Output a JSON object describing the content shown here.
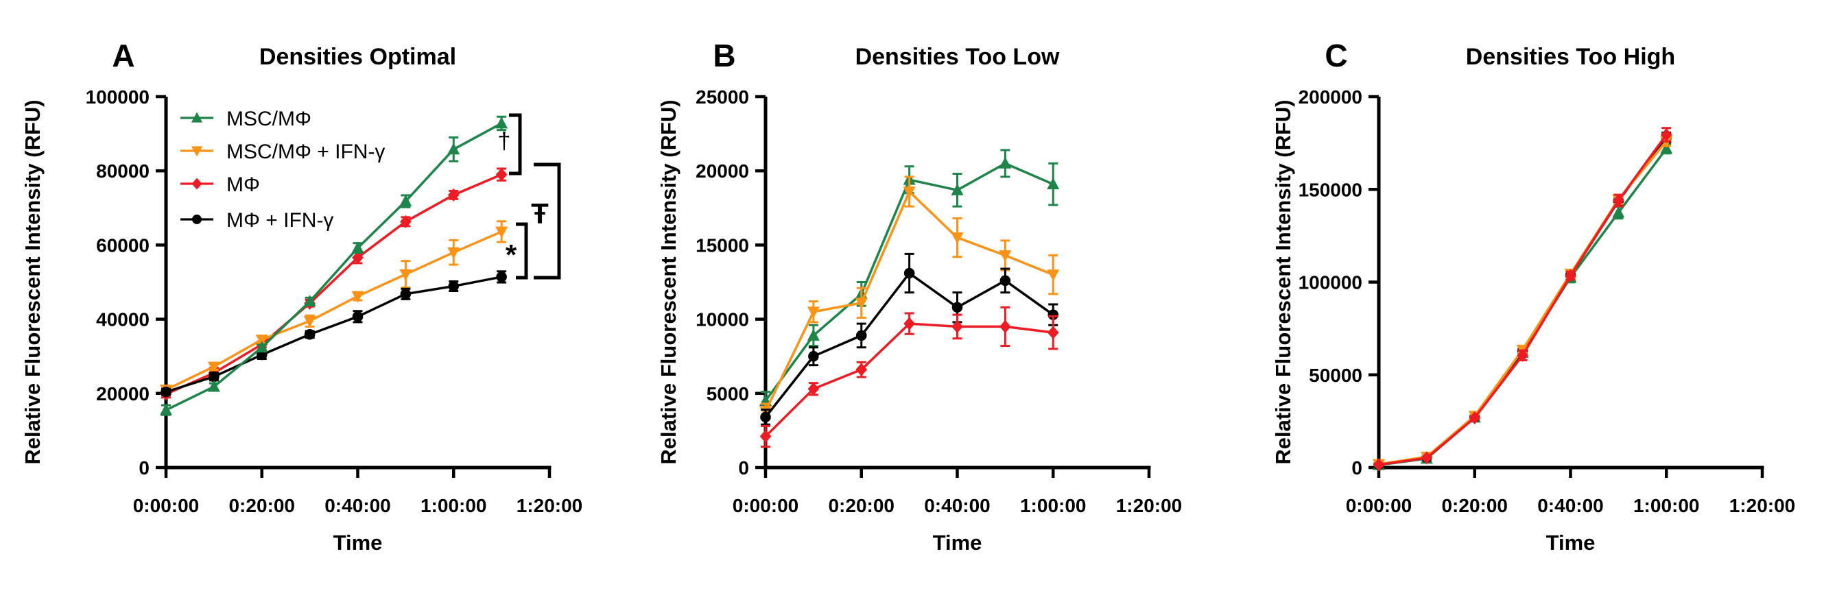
{
  "figure": {
    "background": "#ffffff",
    "x_axis_label": "Time",
    "colors": {
      "green": "#1E8449",
      "orange": "#FB9318",
      "red": "#EC1C24",
      "black": "#000000"
    },
    "legend": [
      {
        "label": "MSC/MΦ",
        "color": "#1E8449",
        "marker": "triangle-up"
      },
      {
        "label": "MSC/MΦ + IFN-γ",
        "color": "#FB9318",
        "marker": "triangle-down"
      },
      {
        "label": "MΦ",
        "color": "#EC1C24",
        "marker": "diamond"
      },
      {
        "label": "MΦ + IFN-γ",
        "color": "#000000",
        "marker": "circle"
      }
    ]
  },
  "chart_data": [
    {
      "type": "line",
      "panel_letter": "A",
      "title": "Densities Optimal",
      "xlabel": "Time",
      "ylabel": "Relative Fluorescent Intensity (RFU)",
      "xlim_minutes": [
        0,
        80
      ],
      "x_tick_minutes": [
        0,
        20,
        40,
        60,
        80
      ],
      "x_tick_labels": [
        "0:00:00",
        "0:20:00",
        "0:40:00",
        "1:00:00",
        "1:20:00"
      ],
      "ylim": [
        0,
        100000
      ],
      "y_ticks": [
        0,
        20000,
        40000,
        60000,
        80000,
        100000
      ],
      "y_tick_labels": [
        "0",
        "20000",
        "40000",
        "60000",
        "80000",
        "100000"
      ],
      "show_legend": true,
      "x_minutes": [
        0,
        10,
        20,
        30,
        40,
        50,
        60,
        70
      ],
      "draw_order": [
        2,
        1,
        3,
        0
      ],
      "series": [
        {
          "name": "MSC/MΦ",
          "color": "#1E8449",
          "marker": "triangle-up",
          "values": [
            15500,
            21800,
            32400,
            44800,
            59200,
            71800,
            85800,
            92800
          ],
          "errors": [
            1300,
            900,
            700,
            1000,
            1300,
            1600,
            3200,
            1800
          ]
        },
        {
          "name": "MSC/MΦ + IFN-γ",
          "color": "#FB9318",
          "marker": "triangle-down",
          "values": [
            21000,
            27200,
            34500,
            39500,
            46200,
            52100,
            58000,
            63600
          ],
          "errors": [
            800,
            900,
            900,
            1500,
            1100,
            3600,
            3300,
            2800
          ]
        },
        {
          "name": "MΦ",
          "color": "#EC1C24",
          "marker": "diamond",
          "values": [
            19800,
            25500,
            33200,
            44300,
            56600,
            66300,
            73500,
            79000
          ],
          "errors": [
            900,
            1400,
            800,
            900,
            1500,
            1200,
            1100,
            1600
          ]
        },
        {
          "name": "MΦ + IFN-γ",
          "color": "#000000",
          "marker": "circle",
          "values": [
            20400,
            24500,
            30400,
            35900,
            40700,
            46800,
            48900,
            51400
          ],
          "errors": [
            800,
            1000,
            1100,
            900,
            1500,
            1400,
            1300,
            1500
          ]
        }
      ],
      "annotations": [
        {
          "symbol": "†",
          "x": 758,
          "top": 168,
          "bottom": 253,
          "arm": 16,
          "lx": 735,
          "ly": 217,
          "fs": 34,
          "bold": false
        },
        {
          "symbol": "Ŧ",
          "x": 815,
          "top": 240,
          "bottom": 405,
          "arm": 37,
          "lx": 787,
          "ly": 326,
          "fs": 42,
          "bold": true
        },
        {
          "symbol": "*",
          "x": 767,
          "top": 327,
          "bottom": 405,
          "arm": 15,
          "lx": 745,
          "ly": 386,
          "fs": 42,
          "bold": true
        }
      ]
    },
    {
      "type": "line",
      "panel_letter": "B",
      "title": "Densities Too Low",
      "xlabel": "Time",
      "ylabel": "Relative Fluorescent Intensity (RFU)",
      "xlim_minutes": [
        0,
        80
      ],
      "x_tick_minutes": [
        0,
        20,
        40,
        60,
        80
      ],
      "x_tick_labels": [
        "0:00:00",
        "0:20:00",
        "0:40:00",
        "1:00:00",
        "1:20:00"
      ],
      "ylim": [
        0,
        25000
      ],
      "y_ticks": [
        0,
        5000,
        10000,
        15000,
        20000,
        25000
      ],
      "y_tick_labels": [
        "0",
        "5000",
        "10000",
        "15000",
        "20000",
        "25000"
      ],
      "show_legend": false,
      "x_minutes": [
        0,
        10,
        20,
        30,
        40,
        50,
        60
      ],
      "draw_order": [
        0,
        1,
        3,
        2
      ],
      "series": [
        {
          "name": "MSC/MΦ",
          "color": "#1E8449",
          "marker": "triangle-up",
          "values": [
            4500,
            8900,
            11700,
            19400,
            18700,
            20500,
            19100
          ],
          "errors": [
            600,
            700,
            800,
            900,
            1100,
            900,
            1400
          ]
        },
        {
          "name": "MSC/MΦ + IFN-γ",
          "color": "#FB9318",
          "marker": "triangle-down",
          "values": [
            3800,
            10500,
            11100,
            18600,
            15500,
            14300,
            13000
          ],
          "errors": [
            500,
            700,
            1000,
            1000,
            1300,
            1000,
            1300
          ]
        },
        {
          "name": "MΦ",
          "color": "#EC1C24",
          "marker": "diamond",
          "values": [
            2100,
            5300,
            6600,
            9700,
            9500,
            9500,
            9100
          ],
          "errors": [
            700,
            400,
            500,
            700,
            800,
            1300,
            1100
          ]
        },
        {
          "name": "MΦ + IFN-γ",
          "color": "#000000",
          "marker": "circle",
          "values": [
            3400,
            7500,
            8900,
            13100,
            10800,
            12600,
            10300
          ],
          "errors": [
            500,
            600,
            800,
            1300,
            1000,
            800,
            700
          ]
        }
      ],
      "annotations": []
    },
    {
      "type": "line",
      "panel_letter": "C",
      "title": "Densities Too High",
      "xlabel": "Time",
      "ylabel": "Relative Fluorescent Intensity  (RFU)",
      "xlim_minutes": [
        0,
        80
      ],
      "x_tick_minutes": [
        0,
        20,
        40,
        60,
        80
      ],
      "x_tick_labels": [
        "0:00:00",
        "0:20:00",
        "0:40:00",
        "1:00:00",
        "1:20:00"
      ],
      "ylim": [
        0,
        200000
      ],
      "y_ticks": [
        0,
        50000,
        100000,
        150000,
        200000
      ],
      "y_tick_labels": [
        "0",
        "50000",
        "100000",
        "150000",
        "200000"
      ],
      "show_legend": false,
      "x_minutes": [
        0,
        10,
        20,
        30,
        40,
        50,
        60
      ],
      "draw_order": [
        0,
        3,
        1,
        2
      ],
      "series": [
        {
          "name": "MSC/MΦ",
          "color": "#1E8449",
          "marker": "triangle-up",
          "values": [
            1400,
            4800,
            27000,
            62000,
            102500,
            137500,
            172000
          ],
          "errors": [
            300,
            400,
            900,
            1600,
            2600,
            3200,
            2600
          ]
        },
        {
          "name": "MSC/MΦ + IFN-γ",
          "color": "#FB9318",
          "marker": "triangle-down",
          "values": [
            1800,
            5800,
            27800,
            63500,
            104500,
            144500,
            176000
          ],
          "errors": [
            300,
            500,
            900,
            1500,
            1900,
            2300,
            2600
          ]
        },
        {
          "name": "MΦ",
          "color": "#EC1C24",
          "marker": "diamond",
          "values": [
            1500,
            5200,
            26800,
            60500,
            103500,
            144000,
            179500
          ],
          "errors": [
            300,
            400,
            800,
            2600,
            2100,
            3100,
            3600
          ]
        },
        {
          "name": "MΦ + IFN-γ",
          "color": "#000000",
          "marker": "circle",
          "values": [
            1600,
            5400,
            27200,
            62800,
            103500,
            143800,
            178000
          ],
          "errors": [
            300,
            400,
            800,
            1600,
            1900,
            2100,
            2600
          ]
        }
      ],
      "annotations": []
    }
  ]
}
